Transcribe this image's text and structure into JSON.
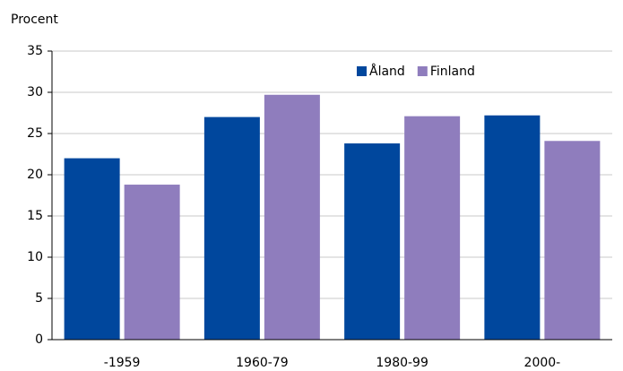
{
  "chart_data": {
    "type": "bar",
    "y_label": "Procent",
    "categories": [
      "-1959",
      "1960-79",
      "1980-99",
      "2000-"
    ],
    "series": [
      {
        "name": "Åland",
        "color": "#00479d",
        "values": [
          22,
          27,
          23.8,
          27.2
        ]
      },
      {
        "name": "Finland",
        "color": "#8f7dbd",
        "values": [
          18.8,
          29.7,
          27.1,
          24.1
        ]
      }
    ],
    "ylim": [
      0,
      35
    ],
    "yticks": [
      0,
      5,
      10,
      15,
      20,
      25,
      30,
      35
    ],
    "grid": true,
    "legend": "top-right"
  }
}
